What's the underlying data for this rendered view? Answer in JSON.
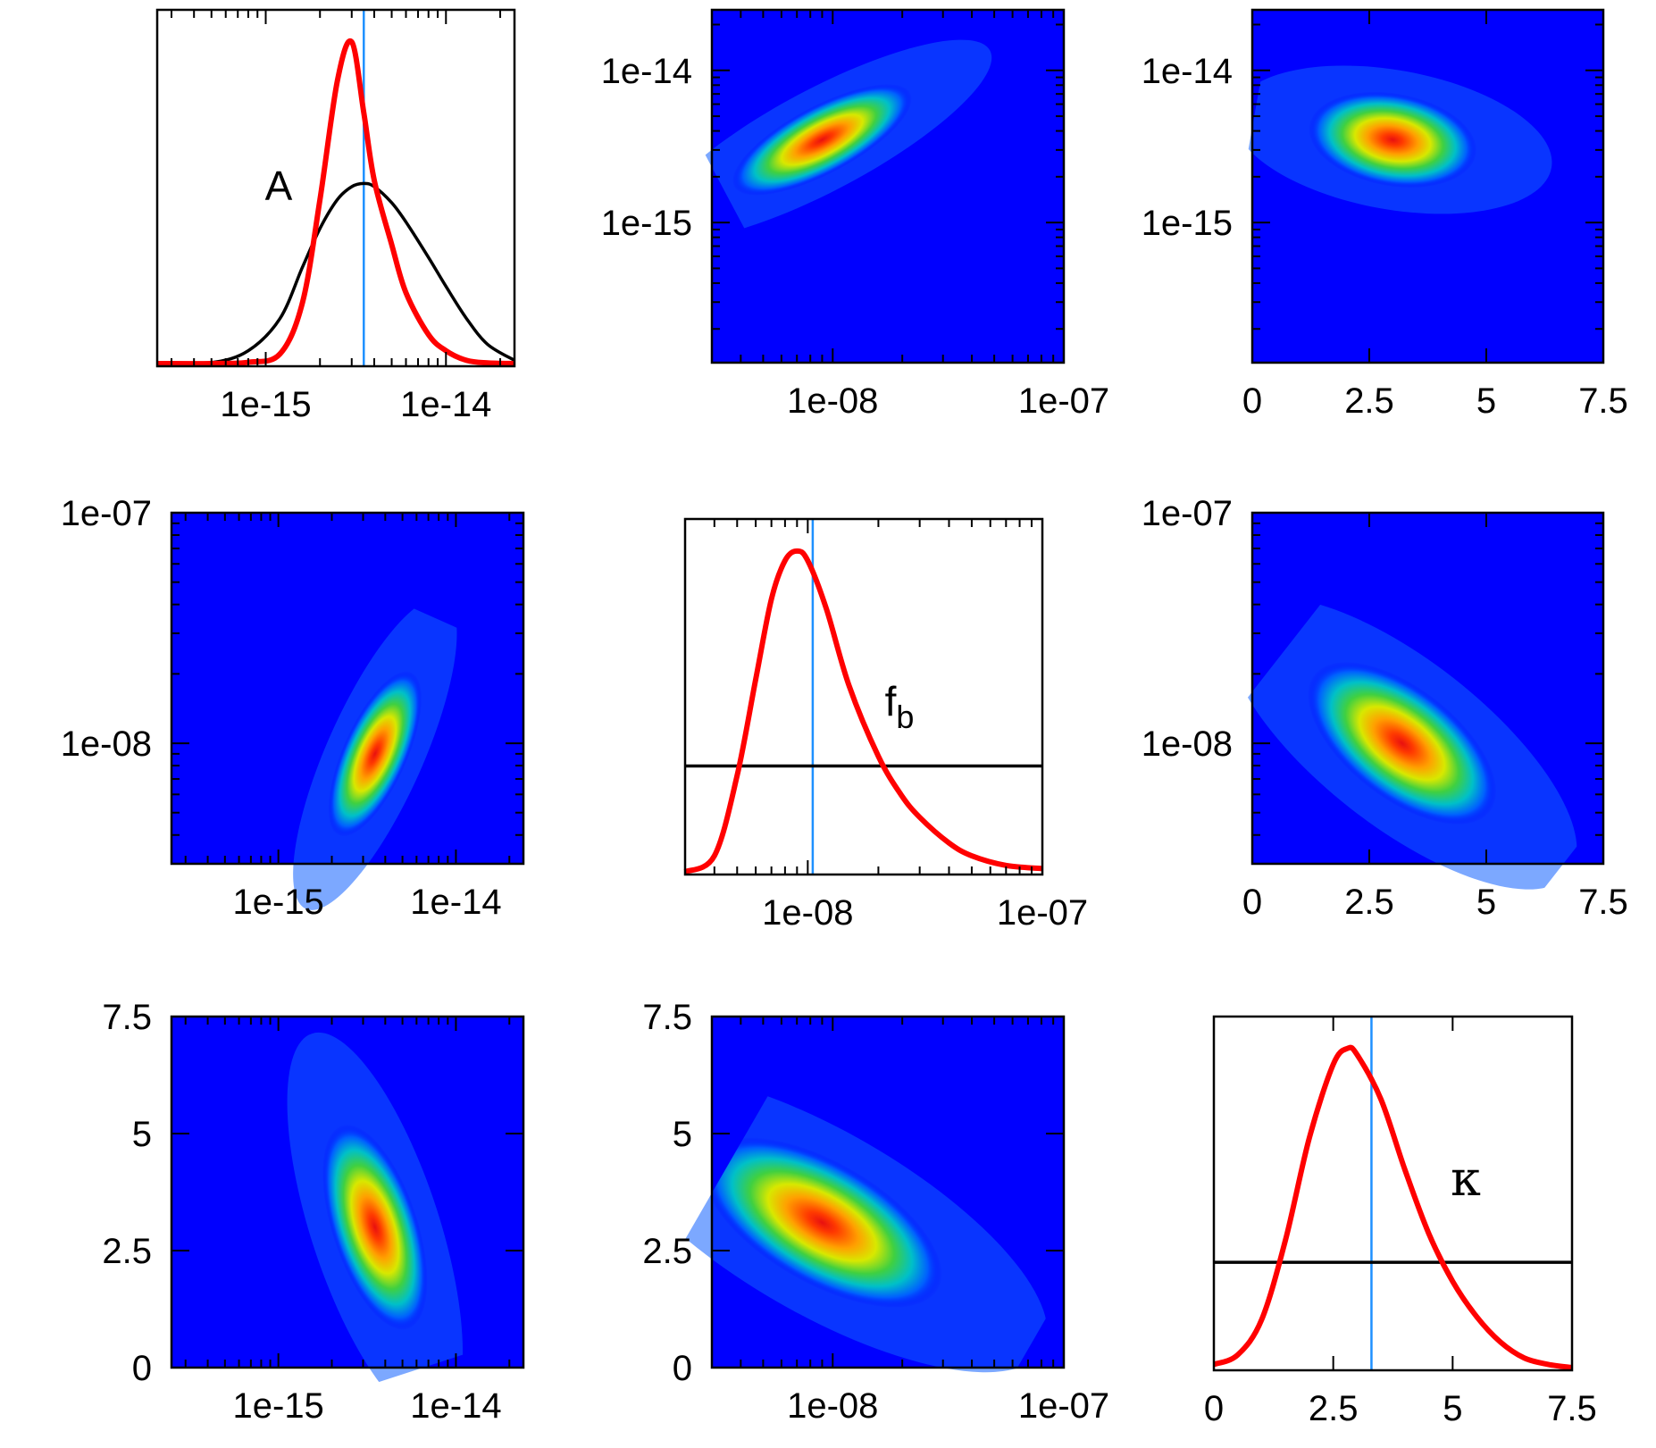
{
  "colors": {
    "posterior": "#ff0000",
    "prior": "#000000",
    "injected": "#1e90ff",
    "density_low": "#0000ff",
    "density_high": "#ff2000"
  },
  "chart_data": [
    {
      "type": "line",
      "panel": "histogram-A",
      "label": "A",
      "x_scale": "log",
      "xlim": [
        2.5e-16,
        2.4e-14
      ],
      "xticks": [
        1e-15,
        1e-14
      ],
      "xtick_labels": [
        "1e-15",
        "1e-14"
      ],
      "injected_value": 3.5e-15,
      "series": [
        {
          "role": "posterior",
          "x": [
            2.5e-16,
            5e-16,
            8e-16,
            1.2e-15,
            1.6e-15,
            2e-15,
            2.5e-15,
            3e-15,
            3.5e-15,
            4e-15,
            5e-15,
            6e-15,
            8e-15,
            1e-14,
            1.3e-14,
            1.7e-14,
            2.4e-14
          ],
          "y": [
            0,
            0,
            0.004,
            0.03,
            0.19,
            0.51,
            0.88,
            1.0,
            0.78,
            0.57,
            0.37,
            0.22,
            0.09,
            0.04,
            0.01,
            0.002,
            0
          ]
        },
        {
          "role": "prior",
          "x": [
            2.5e-16,
            5e-16,
            8e-16,
            1.2e-15,
            1.6e-15,
            2e-15,
            2.5e-15,
            3e-15,
            3.5e-15,
            4e-15,
            5e-15,
            6e-15,
            8e-15,
            1e-14,
            1.3e-14,
            1.7e-14,
            2.4e-14
          ],
          "y": [
            0,
            0.003,
            0.04,
            0.14,
            0.3,
            0.42,
            0.51,
            0.55,
            0.56,
            0.55,
            0.5,
            0.44,
            0.33,
            0.24,
            0.14,
            0.06,
            0.01
          ]
        }
      ]
    },
    {
      "type": "heatmap",
      "panel": "density-A-vs-fb",
      "x_param": "f_b",
      "y_param": "A",
      "x_scale": "log",
      "y_scale": "log",
      "xlim": [
        3e-09,
        1e-07
      ],
      "ylim": [
        1.2e-16,
        2.5e-14
      ],
      "xticks": [
        1e-08,
        1e-07
      ],
      "xtick_labels": [
        "1e-08",
        "1e-07"
      ],
      "yticks": [
        1e-15,
        1e-14
      ],
      "ytick_labels": [
        "1e-15",
        "1e-14"
      ],
      "peak": {
        "x": 9e-09,
        "y": 3.5e-15
      }
    },
    {
      "type": "heatmap",
      "panel": "density-A-vs-kappa",
      "x_param": "kappa",
      "y_param": "A",
      "x_scale": "linear",
      "y_scale": "log",
      "xlim": [
        0,
        7.5
      ],
      "ylim": [
        1.2e-16,
        2.5e-14
      ],
      "xticks": [
        0,
        2.5,
        5,
        7.5
      ],
      "xtick_labels": [
        "0",
        "2.5",
        "5",
        "7.5"
      ],
      "yticks": [
        1e-15,
        1e-14
      ],
      "ytick_labels": [
        "1e-15",
        "1e-14"
      ],
      "peak": {
        "x": 3.0,
        "y": 3.5e-15
      }
    },
    {
      "type": "heatmap",
      "panel": "density-fb-vs-A",
      "x_param": "A",
      "y_param": "f_b",
      "x_scale": "log",
      "y_scale": "log",
      "xlim": [
        2.5e-16,
        2.4e-14
      ],
      "ylim": [
        3e-09,
        1e-07
      ],
      "xticks": [
        1e-15,
        1e-14
      ],
      "xtick_labels": [
        "1e-15",
        "1e-14"
      ],
      "yticks": [
        1e-08,
        1e-07
      ],
      "ytick_labels": [
        "1e-08",
        "1e-07"
      ],
      "peak": {
        "x": 3.5e-15,
        "y": 9e-09
      }
    },
    {
      "type": "line",
      "panel": "histogram-fb",
      "label": "f",
      "label_subscript": "b",
      "x_scale": "log",
      "xlim": [
        3e-09,
        1e-07
      ],
      "xticks": [
        1e-08,
        1e-07
      ],
      "xtick_labels": [
        "1e-08",
        "1e-07"
      ],
      "injected_value": 1.05e-08,
      "series": [
        {
          "role": "posterior",
          "x": [
            3e-09,
            4e-09,
            5e-09,
            6e-09,
            7e-09,
            8e-09,
            9e-09,
            1e-08,
            1.2e-08,
            1.5e-08,
            2e-08,
            2.5e-08,
            3e-08,
            4e-08,
            5e-08,
            7e-08,
            1e-07
          ],
          "y": [
            0,
            0.05,
            0.3,
            0.6,
            0.85,
            0.97,
            1.0,
            0.97,
            0.82,
            0.58,
            0.36,
            0.24,
            0.17,
            0.09,
            0.05,
            0.02,
            0.01
          ]
        },
        {
          "role": "prior",
          "x": [
            3e-09,
            1e-07
          ],
          "y": [
            0.33,
            0.33
          ]
        }
      ]
    },
    {
      "type": "heatmap",
      "panel": "density-fb-vs-kappa",
      "x_param": "kappa",
      "y_param": "f_b",
      "x_scale": "linear",
      "y_scale": "log",
      "xlim": [
        0,
        7.5
      ],
      "ylim": [
        3e-09,
        1e-07
      ],
      "xticks": [
        0,
        2.5,
        5,
        7.5
      ],
      "xtick_labels": [
        "0",
        "2.5",
        "5",
        "7.5"
      ],
      "yticks": [
        1e-08,
        1e-07
      ],
      "ytick_labels": [
        "1e-08",
        "1e-07"
      ],
      "peak": {
        "x": 3.2,
        "y": 1e-08
      }
    },
    {
      "type": "heatmap",
      "panel": "density-kappa-vs-A",
      "x_param": "A",
      "y_param": "kappa",
      "x_scale": "log",
      "y_scale": "linear",
      "xlim": [
        2.5e-16,
        2.4e-14
      ],
      "ylim": [
        0,
        7.5
      ],
      "xticks": [
        1e-15,
        1e-14
      ],
      "xtick_labels": [
        "1e-15",
        "1e-14"
      ],
      "yticks": [
        0,
        2.5,
        5,
        7.5
      ],
      "ytick_labels": [
        "0",
        "2.5",
        "5",
        "7.5"
      ],
      "peak": {
        "x": 3.5e-15,
        "y": 3.0
      }
    },
    {
      "type": "heatmap",
      "panel": "density-kappa-vs-fb",
      "x_param": "f_b",
      "y_param": "kappa",
      "x_scale": "log",
      "y_scale": "linear",
      "xlim": [
        3e-09,
        1e-07
      ],
      "ylim": [
        0,
        7.5
      ],
      "xticks": [
        1e-08,
        1e-07
      ],
      "xtick_labels": [
        "1e-08",
        "1e-07"
      ],
      "yticks": [
        0,
        2.5,
        5,
        7.5
      ],
      "ytick_labels": [
        "0",
        "2.5",
        "5",
        "7.5"
      ],
      "peak": {
        "x": 9e-09,
        "y": 3.1
      }
    },
    {
      "type": "line",
      "panel": "histogram-kappa",
      "label": "κ",
      "x_scale": "linear",
      "xlim": [
        0,
        7.5
      ],
      "xticks": [
        0,
        2.5,
        5,
        7.5
      ],
      "xtick_labels": [
        "0",
        "2.5",
        "5",
        "7.5"
      ],
      "injected_value": 3.3,
      "series": [
        {
          "role": "posterior",
          "x": [
            0,
            0.5,
            1.0,
            1.5,
            2.0,
            2.5,
            2.8,
            3.0,
            3.5,
            4.0,
            4.5,
            5.0,
            5.5,
            6.0,
            6.5,
            7.0,
            7.5
          ],
          "y": [
            0.01,
            0.04,
            0.15,
            0.4,
            0.72,
            0.95,
            1.0,
            0.98,
            0.84,
            0.62,
            0.42,
            0.27,
            0.16,
            0.08,
            0.03,
            0.01,
            0.0
          ]
        },
        {
          "role": "prior",
          "x": [
            0,
            7.5
          ],
          "y": [
            0.33,
            0.33
          ]
        }
      ]
    }
  ]
}
